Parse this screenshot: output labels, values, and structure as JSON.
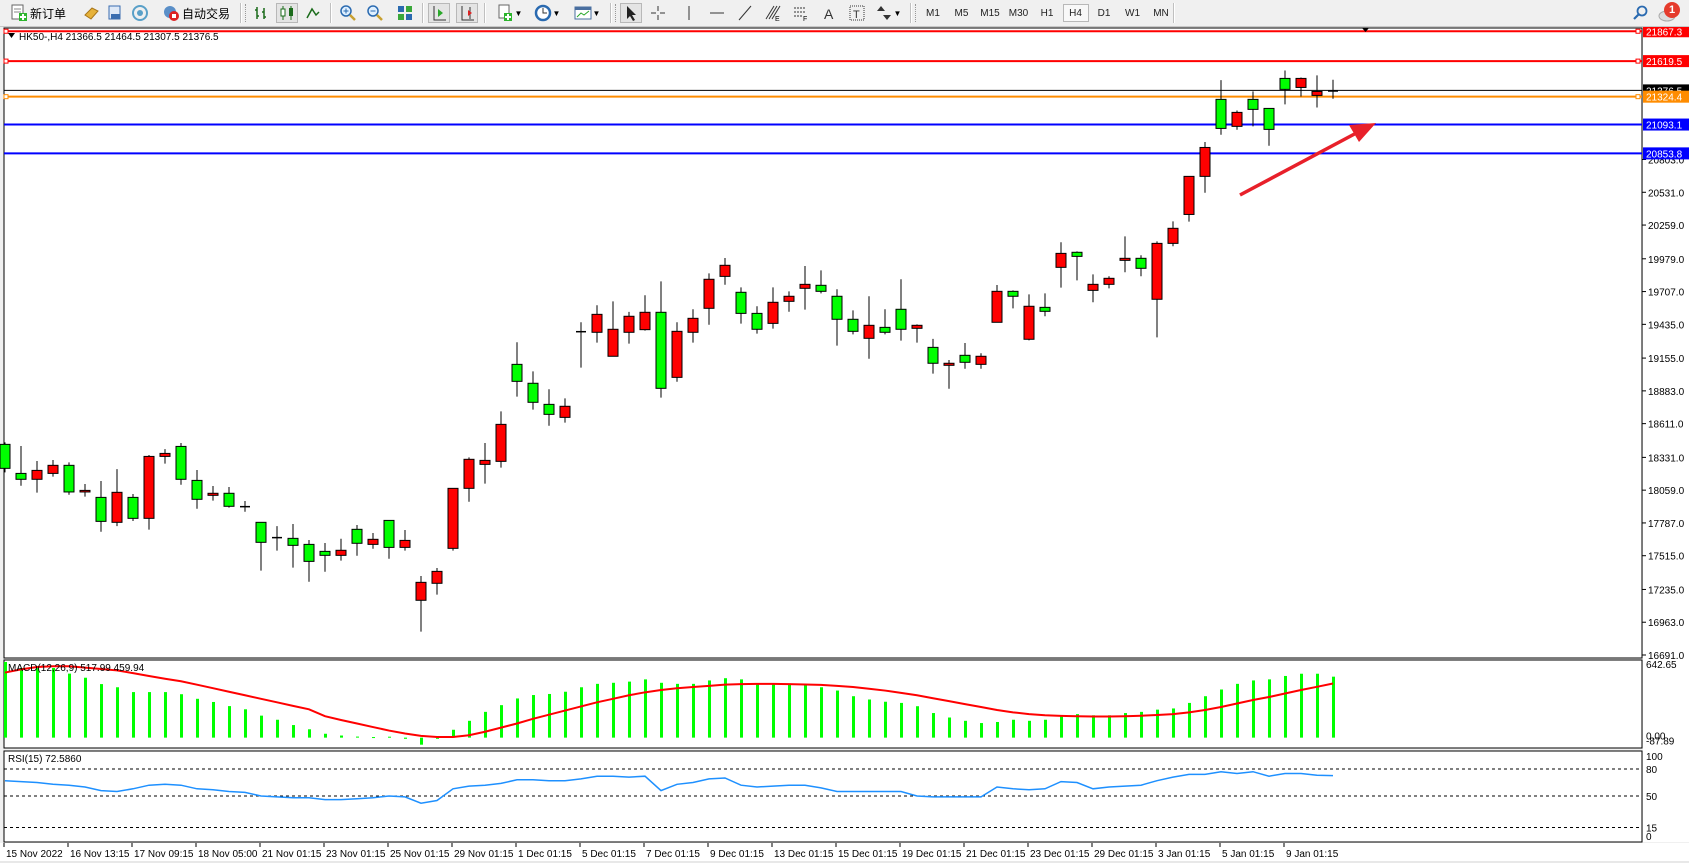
{
  "toolbar": {
    "new_order_label": "新订单",
    "auto_trading_label": "自动交易",
    "timeframes": [
      "M1",
      "M5",
      "M15",
      "M30",
      "H1",
      "H4",
      "D1",
      "W1",
      "MN"
    ],
    "active_timeframe": "H4",
    "notification_count": "1",
    "icons": [
      "new-order-icon",
      "market-watch-icon",
      "data-window-icon",
      "navigator-icon",
      "auto-trading-icon",
      "bar-chart-icon",
      "candlestick-icon",
      "line-chart-icon",
      "zoom-in-icon",
      "zoom-out-icon",
      "tile-windows-icon",
      "auto-scroll-icon",
      "chart-shift-icon",
      "indicators-icon",
      "periods-icon",
      "templates-icon",
      "cursor-icon",
      "crosshair-icon",
      "vertical-line-icon",
      "horizontal-line-icon",
      "trendline-icon",
      "fibonacci-icon",
      "fibo-fan-icon",
      "text-icon",
      "text-label-icon",
      "arrows-icon",
      "search-icon",
      "notification-icon"
    ]
  },
  "chart": {
    "symbol_header": "HK50-,H4  21366.5 21464.5 21307.5 21376.5",
    "colors": {
      "bull": "#ff0000",
      "bear": "#00ff00",
      "macd_hist": "#00ff00",
      "signal": "#ff0000",
      "rsi": "#1e90ff",
      "arrow": "#e8202a"
    },
    "hlines": [
      {
        "price": "21867.3",
        "color": "#ff0000",
        "handles": true
      },
      {
        "price": "21619.5",
        "color": "#ff0000",
        "handles": true
      },
      {
        "price": "21376.5",
        "color": "#000000",
        "handles": false
      },
      {
        "price": "21324.4",
        "color": "#ff8c00",
        "handles": true
      },
      {
        "price": "21093.1",
        "color": "#0000ff",
        "handles": false
      },
      {
        "price": "20853.8",
        "color": "#0000ff",
        "handles": false
      }
    ],
    "price_ticks": [
      "20803.0",
      "20531.0",
      "20259.0",
      "19979.0",
      "19707.0",
      "19435.0",
      "19155.0",
      "18883.0",
      "18611.0",
      "18331.0",
      "18059.0",
      "17787.0",
      "17515.0",
      "17235.0",
      "16963.0",
      "16691.0"
    ],
    "macd_header": "MACD(12,26,9) 517.99 459.94",
    "macd_ticks": [
      "642.65",
      "0.00",
      "-87.89"
    ],
    "rsi_header": "RSI(15) 72.5860",
    "rsi_ticks": [
      "100",
      "80",
      "50",
      "15",
      "0"
    ],
    "date_labels": [
      "15 Nov 2022",
      "16 Nov 13:15",
      "17 Nov 09:15",
      "18 Nov 05:00",
      "21 Nov 01:15",
      "23 Nov 01:15",
      "25 Nov 01:15",
      "29 Nov 01:15",
      "1 Dec 01:15",
      "5 Dec 01:15",
      "7 Dec 01:15",
      "9 Dec 01:15",
      "13 Dec 01:15",
      "15 Dec 01:15",
      "19 Dec 01:15",
      "21 Dec 01:15",
      "23 Dec 01:15",
      "29 Dec 01:15",
      "3 Jan 01:15",
      "5 Jan 01:15",
      "9 Jan 01:15"
    ]
  },
  "chart_data": {
    "type": "candlestick",
    "ylim": [
      16691.0,
      21867.3
    ],
    "label_every_n_bars": 4,
    "ohlc": [
      [
        18439,
        18456,
        18207,
        18240
      ],
      [
        18198,
        18425,
        18096,
        18149
      ],
      [
        18149,
        18301,
        18038,
        18223
      ],
      [
        18198,
        18309,
        18171,
        18265
      ],
      [
        18265,
        18290,
        18021,
        18044
      ],
      [
        18044,
        18110,
        18005,
        18057
      ],
      [
        17999,
        18135,
        17714,
        17800
      ],
      [
        17792,
        18234,
        17761,
        18041
      ],
      [
        17999,
        18027,
        17803,
        17825
      ],
      [
        17825,
        18351,
        17731,
        18339
      ],
      [
        18339,
        18400,
        18279,
        18364
      ],
      [
        18422,
        18450,
        18104,
        18149
      ],
      [
        18140,
        18226,
        17905,
        17983
      ],
      [
        18016,
        18093,
        17972,
        18033
      ],
      [
        18033,
        18085,
        17914,
        17925
      ],
      [
        17922,
        17969,
        17880,
        17922
      ],
      [
        17792,
        17792,
        17391,
        17626
      ],
      [
        17665,
        17761,
        17557,
        17665
      ],
      [
        17659,
        17778,
        17416,
        17601
      ],
      [
        17609,
        17645,
        17299,
        17468
      ],
      [
        17551,
        17620,
        17382,
        17518
      ],
      [
        17518,
        17656,
        17474,
        17560
      ],
      [
        17734,
        17770,
        17515,
        17618
      ],
      [
        17609,
        17703,
        17573,
        17651
      ],
      [
        17808,
        17808,
        17490,
        17584
      ],
      [
        17584,
        17728,
        17557,
        17642
      ],
      [
        17145,
        17347,
        16885,
        17294
      ],
      [
        17286,
        17413,
        17192,
        17385
      ],
      [
        17576,
        18074,
        17557,
        18074
      ],
      [
        18074,
        18331,
        17963,
        18315
      ],
      [
        18273,
        18450,
        18113,
        18306
      ],
      [
        18298,
        18713,
        18246,
        18605
      ],
      [
        19103,
        19286,
        18835,
        18962
      ],
      [
        18946,
        19045,
        18727,
        18788
      ],
      [
        18771,
        18896,
        18594,
        18688
      ],
      [
        18663,
        18821,
        18619,
        18755
      ],
      [
        19374,
        19452,
        19076,
        19374
      ],
      [
        19369,
        19593,
        19283,
        19518
      ],
      [
        19170,
        19626,
        19170,
        19394
      ],
      [
        19369,
        19538,
        19275,
        19502
      ],
      [
        19391,
        19676,
        19383,
        19535
      ],
      [
        19535,
        19792,
        18827,
        18904
      ],
      [
        18995,
        19452,
        18959,
        19377
      ],
      [
        19369,
        19560,
        19283,
        19485
      ],
      [
        19568,
        19858,
        19432,
        19809
      ],
      [
        19833,
        19986,
        19764,
        19925
      ],
      [
        19701,
        19742,
        19441,
        19526
      ],
      [
        19526,
        19585,
        19358,
        19394
      ],
      [
        19443,
        19742,
        19399,
        19618
      ],
      [
        19626,
        19709,
        19540,
        19668
      ],
      [
        19734,
        19919,
        19557,
        19767
      ],
      [
        19759,
        19883,
        19692,
        19709
      ],
      [
        19668,
        19726,
        19258,
        19477
      ],
      [
        19477,
        19551,
        19352,
        19377
      ],
      [
        19319,
        19668,
        19150,
        19427
      ],
      [
        19410,
        19560,
        19352,
        19369
      ],
      [
        19560,
        19809,
        19300,
        19394
      ],
      [
        19402,
        19435,
        19283,
        19427
      ],
      [
        19244,
        19314,
        19026,
        19112
      ],
      [
        19095,
        19139,
        18901,
        19112
      ],
      [
        19178,
        19280,
        19067,
        19120
      ],
      [
        19103,
        19195,
        19067,
        19170
      ],
      [
        19452,
        19762,
        19452,
        19709
      ],
      [
        19709,
        19717,
        19568,
        19668
      ],
      [
        19311,
        19684,
        19302,
        19585
      ],
      [
        19576,
        19692,
        19502,
        19543
      ],
      [
        19908,
        20116,
        19740,
        20024
      ],
      [
        20033,
        20041,
        19800,
        19999
      ],
      [
        19717,
        19850,
        19618,
        19767
      ],
      [
        19767,
        19834,
        19734,
        19817
      ],
      [
        19966,
        20165,
        19867,
        19983
      ],
      [
        19983,
        20008,
        19834,
        19900
      ],
      [
        19643,
        20124,
        19327,
        20107
      ],
      [
        20107,
        20290,
        20083,
        20232
      ],
      [
        20347,
        20663,
        20287,
        20663
      ],
      [
        20663,
        20948,
        20527,
        20903
      ],
      [
        21302,
        21462,
        21008,
        21061
      ],
      [
        21078,
        21210,
        21050,
        21194
      ],
      [
        21302,
        21368,
        21078,
        21219
      ],
      [
        21227,
        21227,
        20917,
        21053
      ],
      [
        21476,
        21542,
        21260,
        21385
      ],
      [
        21401,
        21484,
        21326,
        21476
      ],
      [
        21335,
        21501,
        21235,
        21368
      ],
      [
        21366.5,
        21464.5,
        21307.5,
        21376.5
      ]
    ],
    "macd": {
      "ylim": [
        -87.89,
        642.65
      ],
      "histogram": [
        643,
        592,
        592,
        592,
        544,
        509,
        455,
        428,
        387,
        387,
        387,
        369,
        330,
        303,
        268,
        241,
        187,
        152,
        107,
        71,
        33,
        18,
        9,
        5,
        8,
        -10,
        -60,
        -10,
        67,
        143,
        219,
        276,
        333,
        362,
        371,
        390,
        428,
        457,
        466,
        476,
        495,
        466,
        457,
        457,
        486,
        505,
        495,
        457,
        457,
        457,
        447,
        428,
        400,
        352,
        324,
        305,
        295,
        267,
        209,
        171,
        143,
        124,
        133,
        152,
        143,
        152,
        190,
        200,
        190,
        190,
        209,
        219,
        238,
        248,
        295,
        352,
        409,
        457,
        486,
        495,
        524,
        543,
        543,
        517.99
      ],
      "signal": [
        553,
        580,
        600,
        607,
        607,
        595,
        583,
        571,
        548,
        524,
        500,
        479,
        450,
        420,
        390,
        360,
        330,
        300,
        270,
        241,
        182,
        150,
        120,
        90,
        60,
        35,
        15,
        5,
        5,
        20,
        50,
        85,
        120,
        160,
        195,
        230,
        265,
        300,
        330,
        360,
        385,
        405,
        420,
        430,
        440,
        450,
        455,
        457,
        457,
        455,
        452,
        448,
        440,
        430,
        415,
        400,
        380,
        360,
        335,
        310,
        285,
        260,
        235,
        215,
        200,
        190,
        185,
        182,
        180,
        180,
        182,
        186,
        192,
        200,
        215,
        235,
        260,
        290,
        320,
        345,
        375,
        405,
        432,
        459.94
      ]
    },
    "rsi": {
      "ylim": [
        0,
        100
      ],
      "levels": [
        80,
        50,
        15
      ],
      "values": [
        67,
        66,
        65,
        63,
        62,
        60,
        56,
        55,
        58,
        62,
        63,
        62,
        58,
        57,
        55,
        54,
        50,
        49,
        48,
        48,
        46,
        46,
        47,
        48,
        50,
        49,
        42,
        45,
        58,
        61,
        62,
        64,
        68,
        68,
        67,
        67,
        69,
        72,
        72,
        71,
        72,
        56,
        63,
        65,
        69,
        70,
        62,
        60,
        61,
        62,
        62,
        59,
        55,
        55,
        55,
        55,
        55,
        50,
        49,
        49,
        49,
        49,
        60,
        58,
        57,
        58,
        66,
        65,
        58,
        60,
        61,
        62,
        67,
        71,
        74,
        74,
        77,
        75,
        77,
        72,
        75,
        75,
        73,
        72.586
      ]
    }
  }
}
